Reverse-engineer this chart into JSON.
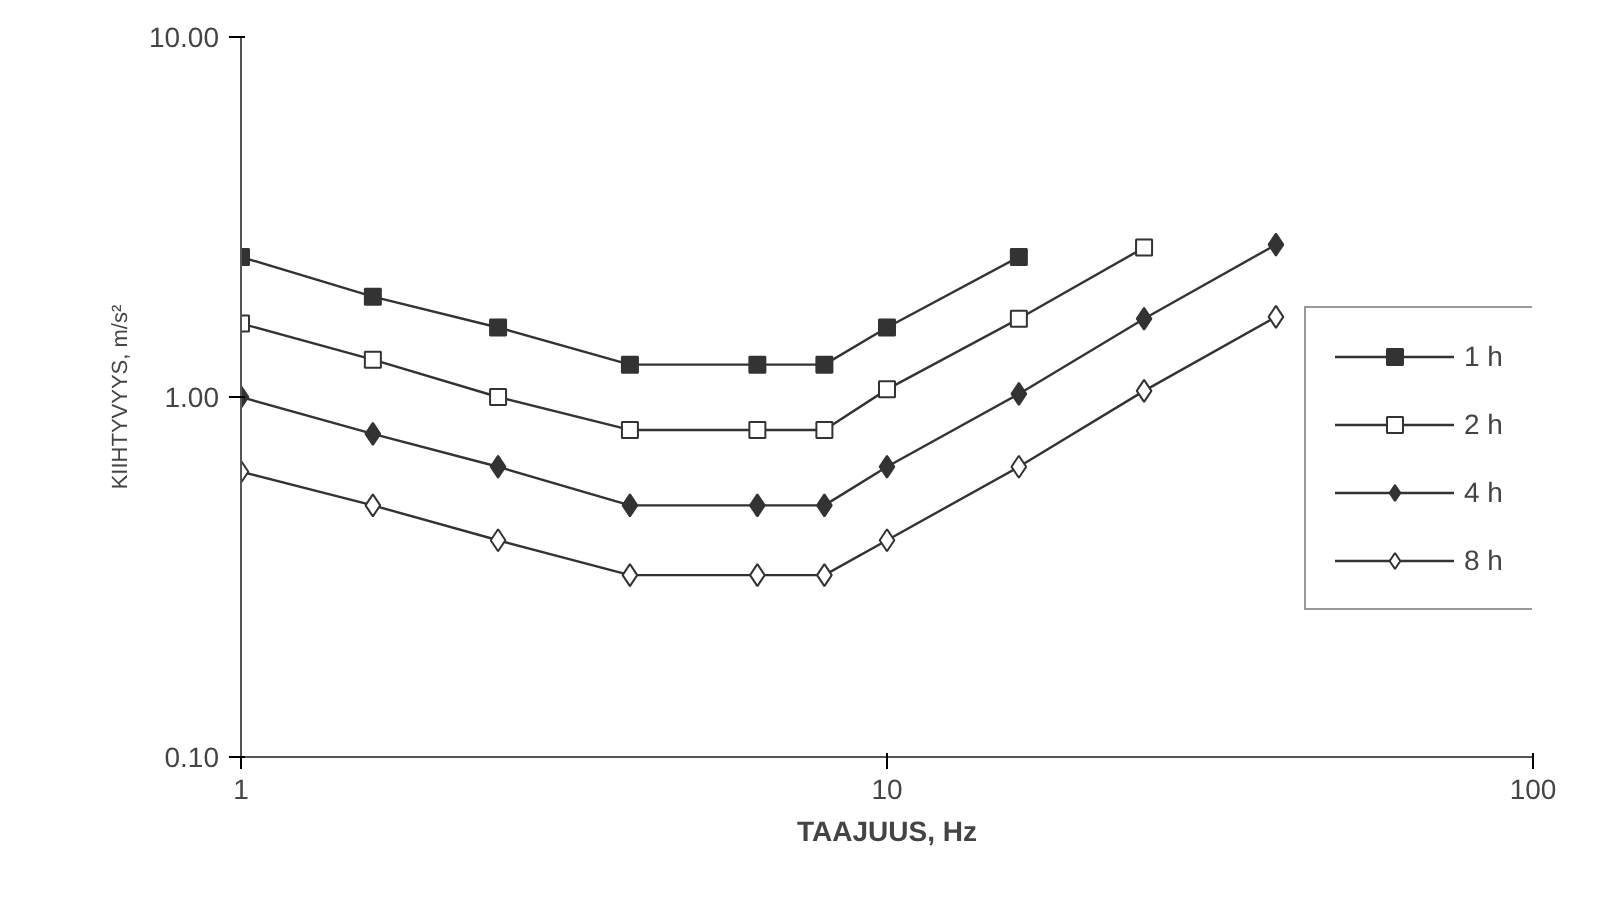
{
  "chart_data": {
    "type": "line",
    "xlabel": "TAAJUUS, Hz",
    "ylabel": "KIIHTYVYYS, m/s²",
    "log": "xy",
    "xlim": [
      1,
      100
    ],
    "ylim": [
      0.1,
      10
    ],
    "xticks": [
      1,
      10,
      100
    ],
    "yticks": [
      {
        "value": 0.1,
        "label": "0.10"
      },
      {
        "value": 1,
        "label": "1.00"
      },
      {
        "value": 10,
        "label": "10.00"
      }
    ],
    "grid": false,
    "legend": "right",
    "line_style": "solid",
    "series": [
      {
        "name": "1 h",
        "color": "#333333",
        "marker": "square",
        "x": [
          1,
          1.6,
          2.5,
          4,
          6.3,
          8,
          10,
          16
        ],
        "values": [
          2.45,
          1.9,
          1.56,
          1.23,
          1.23,
          1.23,
          1.56,
          2.45
        ]
      },
      {
        "name": "2 h",
        "color": "#333333",
        "marker": "square",
        "x": [
          1,
          1.6,
          2.5,
          4,
          6.3,
          8,
          10,
          16,
          25
        ],
        "values": [
          1.6,
          1.27,
          1.0,
          0.81,
          0.81,
          0.81,
          1.05,
          1.65,
          2.6
        ]
      },
      {
        "name": "4 h",
        "color": "#333333",
        "marker": "diamond",
        "x": [
          1,
          1.6,
          2.5,
          4,
          6.3,
          8,
          10,
          16,
          25,
          40
        ],
        "values": [
          1.0,
          0.79,
          0.64,
          0.5,
          0.5,
          0.5,
          0.64,
          1.02,
          1.65,
          2.65
        ]
      },
      {
        "name": "8 h",
        "color": "#333333",
        "marker": "diamond",
        "x": [
          1,
          1.6,
          2.5,
          4,
          6.3,
          8,
          10,
          16,
          25,
          40
        ],
        "values": [
          0.62,
          0.5,
          0.4,
          0.32,
          0.32,
          0.32,
          0.4,
          0.64,
          1.04,
          1.67
        ]
      }
    ]
  }
}
